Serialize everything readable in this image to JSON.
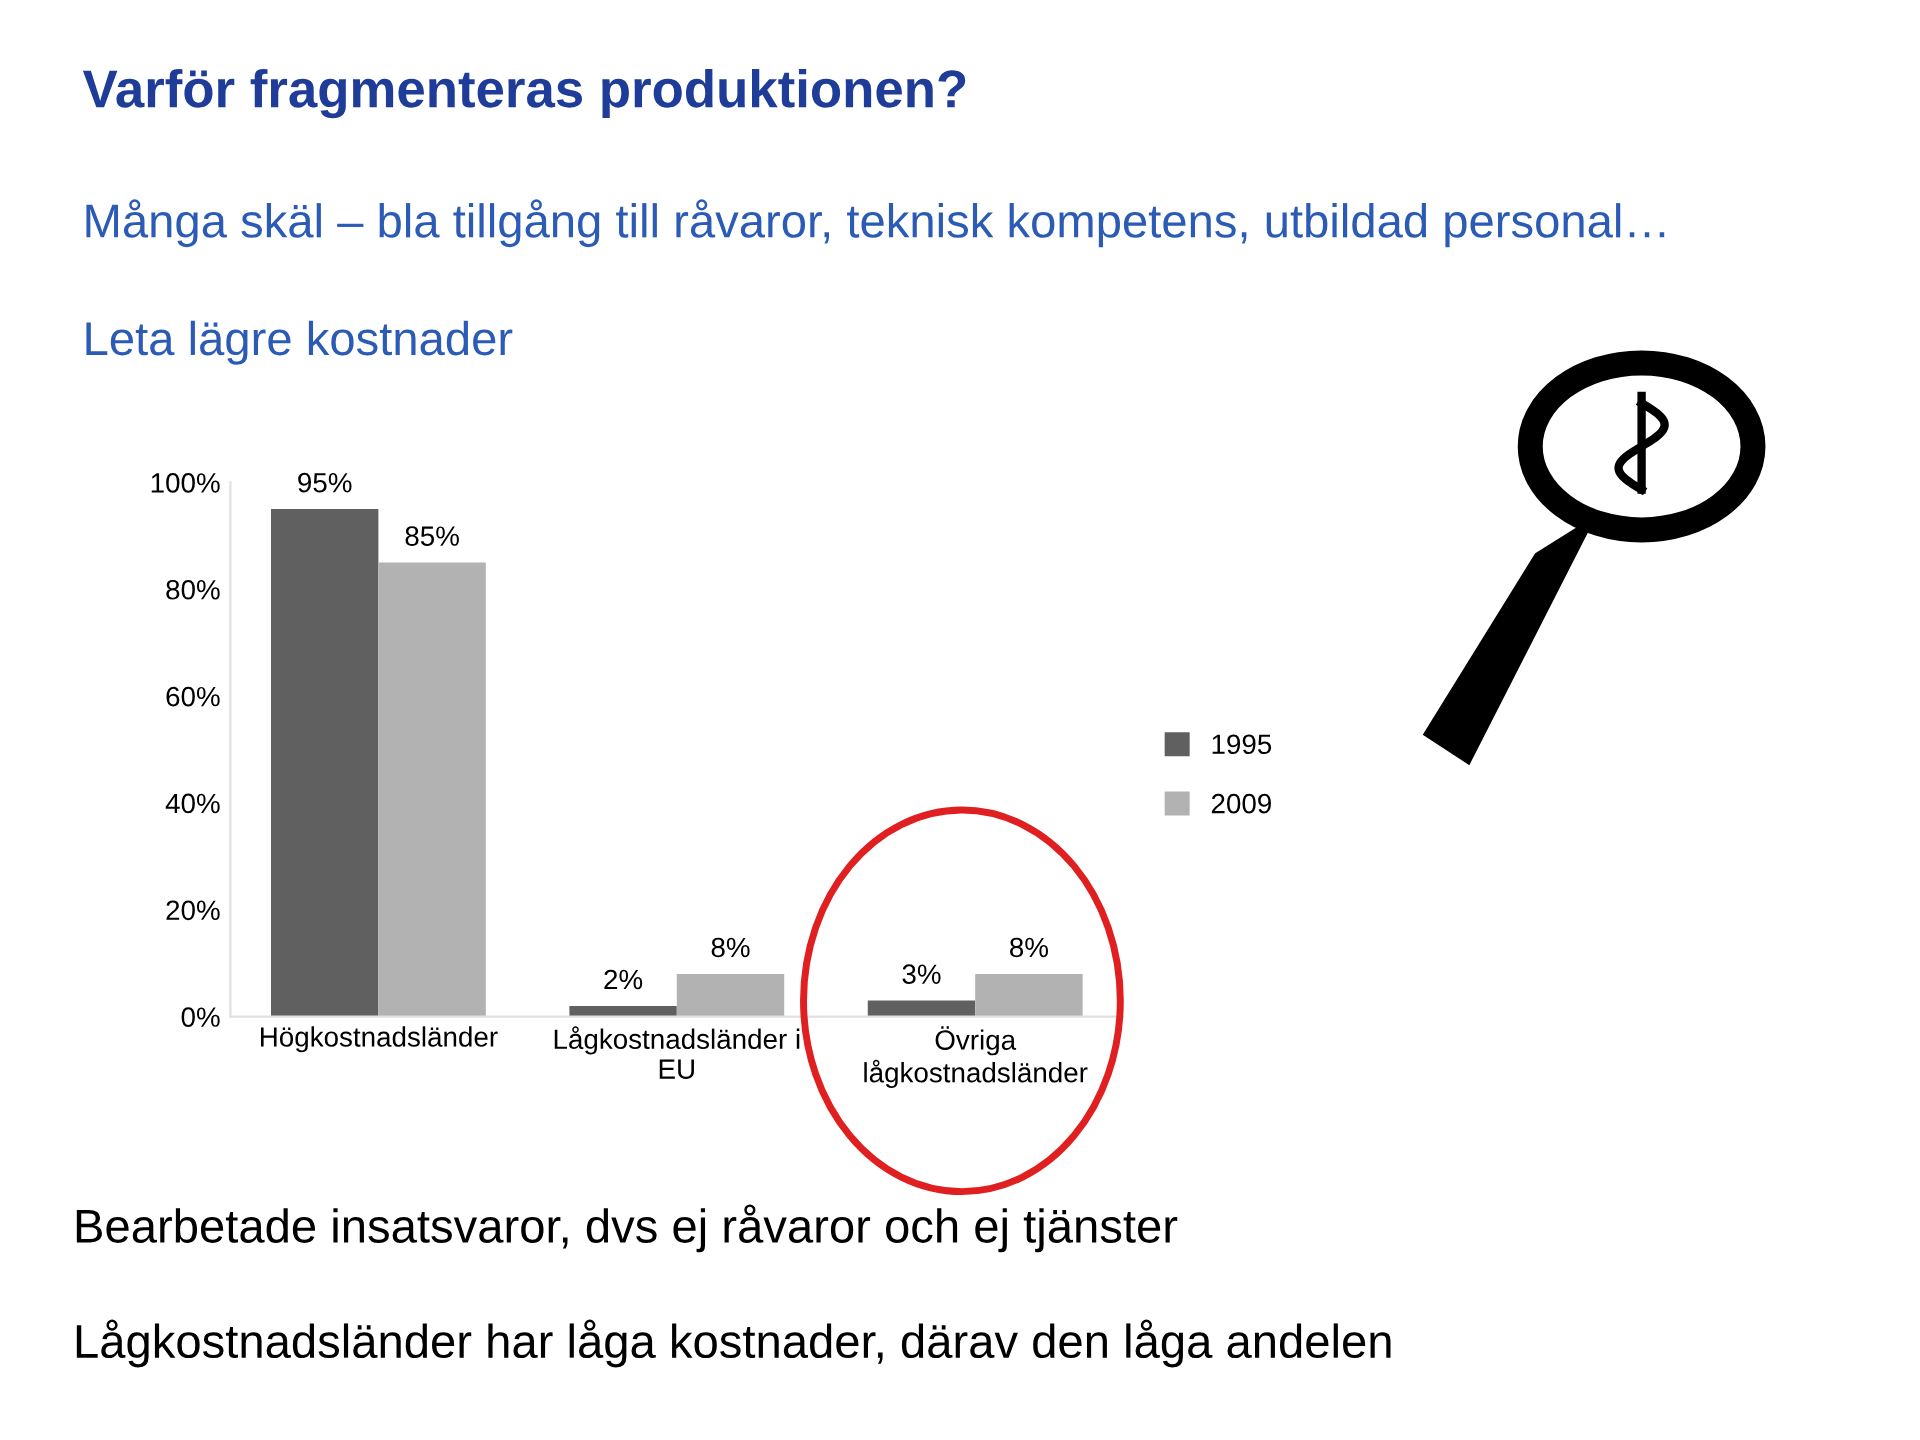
{
  "chart_data": {
    "type": "bar",
    "title": "Varför fragmenteras produktionen?",
    "subtitle": "Många skäl – bla tillgång till råvaror, teknisk kompetens, utbildad personal…",
    "annotations": [
      "Leta lägre kostnader",
      "Bearbetade insatsvaror, dvs ej råvaror och ej tjänster",
      "Lågkostnadsländer har låga kostnader, därav den låga andelen"
    ],
    "categories": [
      "Högkostnadsländer",
      "Lågkostnadsländer i EU",
      "Övriga lågkostnadsländer"
    ],
    "series": [
      {
        "name": "1995",
        "color": "#606060",
        "values": [
          95,
          2,
          3
        ],
        "value_labels": [
          "95%",
          "2%",
          "3%"
        ]
      },
      {
        "name": "2009",
        "color": "#b2b2b2",
        "values": [
          85,
          8,
          8
        ],
        "value_labels": [
          "85%",
          "8%",
          "8%"
        ]
      }
    ],
    "ylim": [
      0,
      100
    ],
    "yticks": [
      {
        "value": 0,
        "label": "0%"
      },
      {
        "value": 20,
        "label": "20%"
      },
      {
        "value": 40,
        "label": "40%"
      },
      {
        "value": 60,
        "label": "60%"
      },
      {
        "value": 80,
        "label": "80%"
      },
      {
        "value": 100,
        "label": "100%"
      }
    ],
    "legend": "right"
  }
}
